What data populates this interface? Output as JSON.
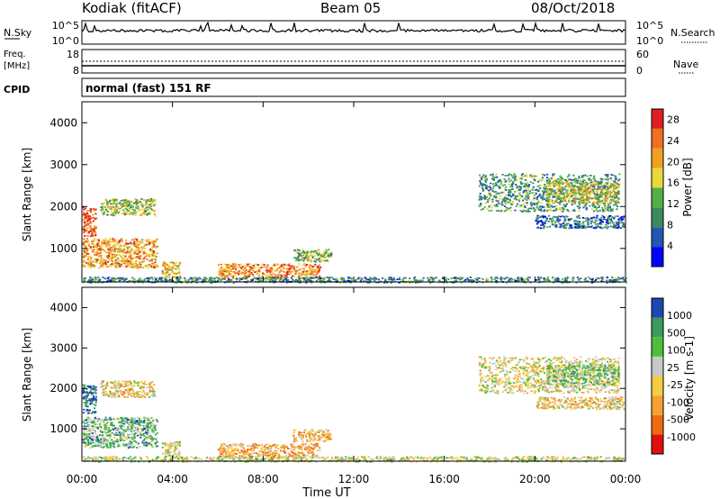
{
  "header": {
    "station": "Kodiak (fitACF)",
    "beam": "Beam 05",
    "date": "08/Oct/2018"
  },
  "strips": {
    "nsky": {
      "label": "N.Sky",
      "left_ticks": [
        "10^5",
        "10^0"
      ],
      "right_ticks": [
        "10^5",
        "10^0"
      ],
      "right_label": "N.Search"
    },
    "freq": {
      "label_line1": "Freq.",
      "label_line2": "[MHz]",
      "left_ticks": [
        "18",
        "8"
      ],
      "right_ticks": [
        "60",
        "0"
      ],
      "right_label": "Nave"
    },
    "cpid": {
      "label": "CPID",
      "text": "normal (fast) 151 RF"
    }
  },
  "colors": {
    "power_scale": [
      "#0000ff",
      "#2456b4",
      "#3a8a5e",
      "#52b048",
      "#e8d83a",
      "#f0a020",
      "#f07020",
      "#e02020"
    ],
    "velocity_scale": [
      "#e01010",
      "#f06a10",
      "#f5a030",
      "#f5cc40",
      "#c8c8c8",
      "#4cc038",
      "#3a9a60",
      "#1c48b0"
    ]
  },
  "chart_data": [
    {
      "type": "heatmap",
      "name": "Power",
      "xlabel": "",
      "ylabel": "Slant Range [km]",
      "x_ticks": [
        "00:00",
        "04:00",
        "08:00",
        "12:00",
        "16:00",
        "20:00",
        "00:00"
      ],
      "xlim_hours": [
        0,
        24
      ],
      "y_ticks": [
        1000,
        2000,
        3000,
        4000
      ],
      "ylim": [
        200,
        4500
      ],
      "colorbar": {
        "label": "Power [dB]",
        "ticks": [
          "4",
          "8",
          "12",
          "16",
          "20",
          "24",
          "28"
        ],
        "range": [
          0,
          30
        ]
      },
      "scatter_regions": [
        {
          "t0": 0.0,
          "t1": 3.3,
          "r0": 550,
          "r1": 1250,
          "level": 0.7
        },
        {
          "t0": 0.0,
          "t1": 0.6,
          "r0": 1300,
          "r1": 2000,
          "level": 0.85
        },
        {
          "t0": 0.8,
          "t1": 3.2,
          "r0": 1800,
          "r1": 2200,
          "level": 0.5
        },
        {
          "t0": 3.5,
          "t1": 4.3,
          "r0": 300,
          "r1": 700,
          "level": 0.6
        },
        {
          "t0": 6.0,
          "t1": 10.5,
          "r0": 300,
          "r1": 650,
          "level": 0.75
        },
        {
          "t0": 9.3,
          "t1": 11.0,
          "r0": 700,
          "r1": 1000,
          "level": 0.45
        },
        {
          "t0": 0.0,
          "t1": 24.0,
          "r0": 200,
          "r1": 330,
          "level": 0.3
        },
        {
          "t0": 17.5,
          "t1": 23.7,
          "r0": 1900,
          "r1": 2800,
          "level": 0.35
        },
        {
          "t0": 20.5,
          "t1": 23.7,
          "r0": 2100,
          "r1": 2600,
          "level": 0.55
        },
        {
          "t0": 20.0,
          "t1": 23.9,
          "r0": 1500,
          "r1": 1800,
          "level": 0.25
        }
      ]
    },
    {
      "type": "heatmap",
      "name": "Velocity",
      "xlabel": "Time UT",
      "ylabel": "Slant Range [km]",
      "x_ticks": [
        "00:00",
        "04:00",
        "08:00",
        "12:00",
        "16:00",
        "20:00",
        "00:00"
      ],
      "xlim_hours": [
        0,
        24
      ],
      "y_ticks": [
        1000,
        2000,
        3000,
        4000
      ],
      "ylim": [
        200,
        4500
      ],
      "colorbar": {
        "label": "Velocity [m s-1]",
        "ticks": [
          "1000",
          "500",
          "100",
          "25",
          "-25",
          "-100",
          "-500",
          "-1000"
        ]
      },
      "scatter_regions": [
        {
          "t0": 0.0,
          "t1": 3.3,
          "r0": 550,
          "r1": 1300,
          "level": 0.7
        },
        {
          "t0": 0.0,
          "t1": 0.6,
          "r0": 1400,
          "r1": 2100,
          "level": 0.95
        },
        {
          "t0": 0.8,
          "t1": 3.2,
          "r0": 1800,
          "r1": 2200,
          "level": 0.45
        },
        {
          "t0": 3.5,
          "t1": 4.3,
          "r0": 300,
          "r1": 700,
          "level": 0.5
        },
        {
          "t0": 6.0,
          "t1": 10.5,
          "r0": 300,
          "r1": 650,
          "level": 0.35
        },
        {
          "t0": 9.3,
          "t1": 11.0,
          "r0": 700,
          "r1": 1000,
          "level": 0.4
        },
        {
          "t0": 0.0,
          "t1": 24.0,
          "r0": 200,
          "r1": 330,
          "level": 0.55
        },
        {
          "t0": 17.5,
          "t1": 23.7,
          "r0": 1900,
          "r1": 2800,
          "level": 0.5
        },
        {
          "t0": 20.5,
          "t1": 23.7,
          "r0": 2100,
          "r1": 2600,
          "level": 0.65
        },
        {
          "t0": 20.0,
          "t1": 23.9,
          "r0": 1500,
          "r1": 1800,
          "level": 0.45
        }
      ]
    }
  ]
}
